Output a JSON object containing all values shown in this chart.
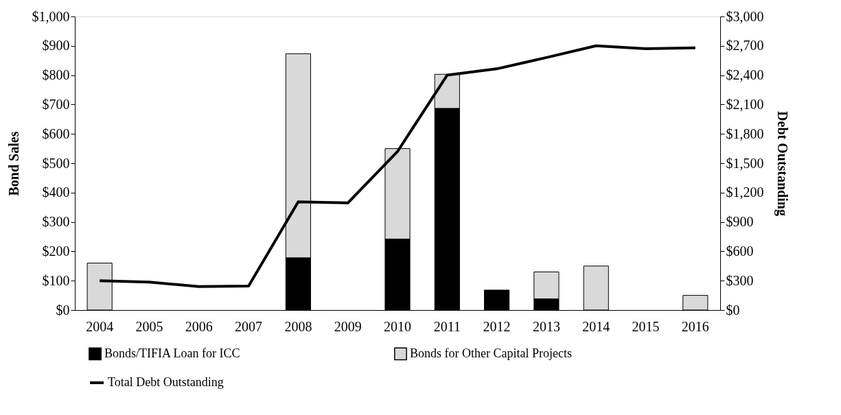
{
  "chart_data": {
    "type": "bar",
    "stacked": true,
    "ylabel": "Bond Sales",
    "y2label": "Debt Outstanding",
    "categories": [
      "2004",
      "2005",
      "2006",
      "2007",
      "2008",
      "2009",
      "2010",
      "2011",
      "2012",
      "2013",
      "2014",
      "2015",
      "2016"
    ],
    "series": [
      {
        "name": "Bonds/TIFIA Loan for ICC",
        "color": "#000000",
        "values": [
          0,
          0,
          0,
          0,
          178,
          0,
          242,
          687,
          68,
          38,
          0,
          0,
          0
        ]
      },
      {
        "name": "Bonds for Other Capital Projects",
        "color": "#d9d9d9",
        "values": [
          160,
          0,
          0,
          0,
          695,
          0,
          308,
          116,
          0,
          92,
          150,
          0,
          50
        ]
      },
      {
        "name": "Total Debt Outstanding",
        "type": "line",
        "axis": "y2",
        "color": "#000000",
        "values": [
          300,
          285,
          240,
          245,
          1105,
          1095,
          1620,
          2400,
          2465,
          2580,
          2700,
          2670,
          2680
        ]
      }
    ],
    "ylim": [
      0,
      1000
    ],
    "yticks": [
      {
        "value": 0,
        "label": "$0"
      },
      {
        "value": 100,
        "label": "$100"
      },
      {
        "value": 200,
        "label": "$200"
      },
      {
        "value": 300,
        "label": "$300"
      },
      {
        "value": 400,
        "label": "$400"
      },
      {
        "value": 500,
        "label": "$500"
      },
      {
        "value": 600,
        "label": "$600"
      },
      {
        "value": 700,
        "label": "$700"
      },
      {
        "value": 800,
        "label": "$800"
      },
      {
        "value": 900,
        "label": "$900"
      },
      {
        "value": 1000,
        "label": "$1,000"
      }
    ],
    "y2lim": [
      0,
      3000
    ],
    "y2ticks": [
      {
        "value": 0,
        "label": "$0"
      },
      {
        "value": 300,
        "label": "$300"
      },
      {
        "value": 600,
        "label": "$600"
      },
      {
        "value": 900,
        "label": "$900"
      },
      {
        "value": 1200,
        "label": "$1,200"
      },
      {
        "value": 1500,
        "label": "$1,500"
      },
      {
        "value": 1800,
        "label": "$1,800"
      },
      {
        "value": 2100,
        "label": "$2,100"
      },
      {
        "value": 2400,
        "label": "$2,400"
      },
      {
        "value": 2700,
        "label": "$2,700"
      },
      {
        "value": 3000,
        "label": "$3,000"
      }
    ],
    "grid": false,
    "legend": "bottom",
    "marker": "none",
    "line_style": "solid"
  }
}
